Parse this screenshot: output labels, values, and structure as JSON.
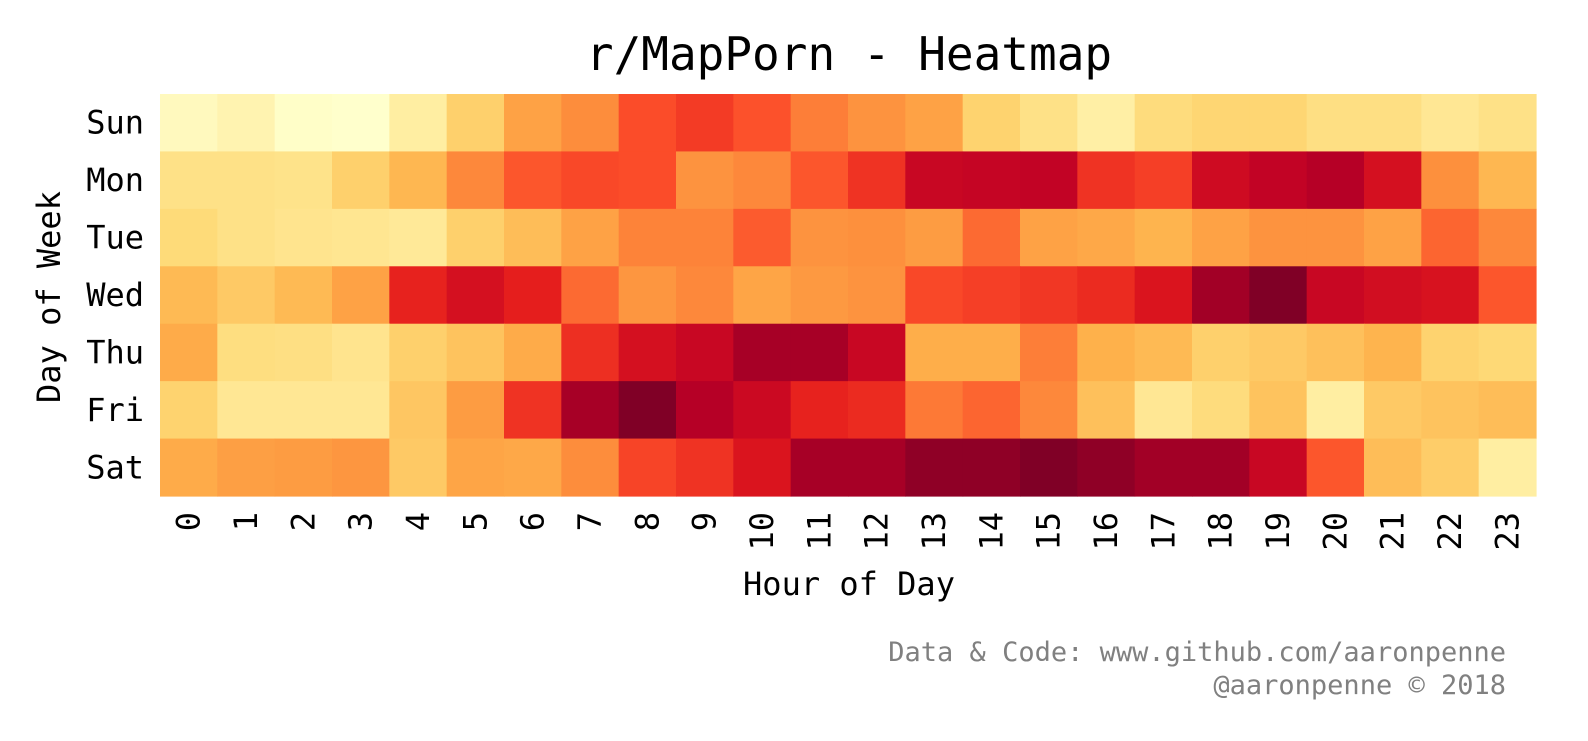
{
  "chart_data": {
    "type": "heatmap",
    "title": "r/MapPorn - Heatmap",
    "xlabel": "Hour of Day",
    "ylabel": "Day of Week",
    "x": [
      "0",
      "1",
      "2",
      "3",
      "4",
      "5",
      "6",
      "7",
      "8",
      "9",
      "10",
      "11",
      "12",
      "13",
      "14",
      "15",
      "16",
      "17",
      "18",
      "19",
      "20",
      "21",
      "22",
      "23"
    ],
    "y": [
      "Sun",
      "Mon",
      "Tue",
      "Wed",
      "Thu",
      "Fri",
      "Sat"
    ],
    "values": [
      [
        0.04,
        0.08,
        0.01,
        0.0,
        0.12,
        0.28,
        0.43,
        0.5,
        0.63,
        0.67,
        0.62,
        0.53,
        0.48,
        0.43,
        0.27,
        0.2,
        0.11,
        0.23,
        0.26,
        0.26,
        0.21,
        0.21,
        0.16,
        0.2
      ],
      [
        0.2,
        0.2,
        0.19,
        0.28,
        0.36,
        0.51,
        0.61,
        0.64,
        0.63,
        0.48,
        0.51,
        0.61,
        0.69,
        0.84,
        0.85,
        0.86,
        0.69,
        0.66,
        0.82,
        0.86,
        0.89,
        0.8,
        0.49,
        0.36
      ],
      [
        0.24,
        0.2,
        0.18,
        0.17,
        0.15,
        0.28,
        0.34,
        0.43,
        0.52,
        0.52,
        0.6,
        0.48,
        0.49,
        0.45,
        0.57,
        0.43,
        0.41,
        0.37,
        0.43,
        0.48,
        0.48,
        0.43,
        0.58,
        0.51
      ],
      [
        0.35,
        0.3,
        0.35,
        0.43,
        0.73,
        0.8,
        0.74,
        0.57,
        0.47,
        0.51,
        0.42,
        0.46,
        0.48,
        0.64,
        0.66,
        0.68,
        0.71,
        0.78,
        0.93,
        1.0,
        0.84,
        0.81,
        0.79,
        0.61
      ],
      [
        0.4,
        0.22,
        0.21,
        0.18,
        0.28,
        0.32,
        0.4,
        0.7,
        0.8,
        0.84,
        0.92,
        0.92,
        0.84,
        0.39,
        0.39,
        0.53,
        0.38,
        0.35,
        0.28,
        0.3,
        0.33,
        0.37,
        0.27,
        0.25
      ],
      [
        0.27,
        0.16,
        0.16,
        0.16,
        0.31,
        0.45,
        0.69,
        0.92,
        1.0,
        0.89,
        0.83,
        0.73,
        0.71,
        0.54,
        0.58,
        0.51,
        0.33,
        0.16,
        0.23,
        0.32,
        0.12,
        0.3,
        0.32,
        0.34
      ],
      [
        0.4,
        0.44,
        0.45,
        0.47,
        0.3,
        0.42,
        0.41,
        0.5,
        0.65,
        0.69,
        0.78,
        0.92,
        0.92,
        0.97,
        0.97,
        1.0,
        0.97,
        0.93,
        0.93,
        0.84,
        0.61,
        0.34,
        0.29,
        0.12
      ]
    ],
    "colormap": "YlOrRd",
    "colorbar": false,
    "grid": false
  },
  "credits": {
    "line1": "Data & Code: www.github.com/aaronpenne",
    "line2": "@aaronpenne © 2018"
  }
}
